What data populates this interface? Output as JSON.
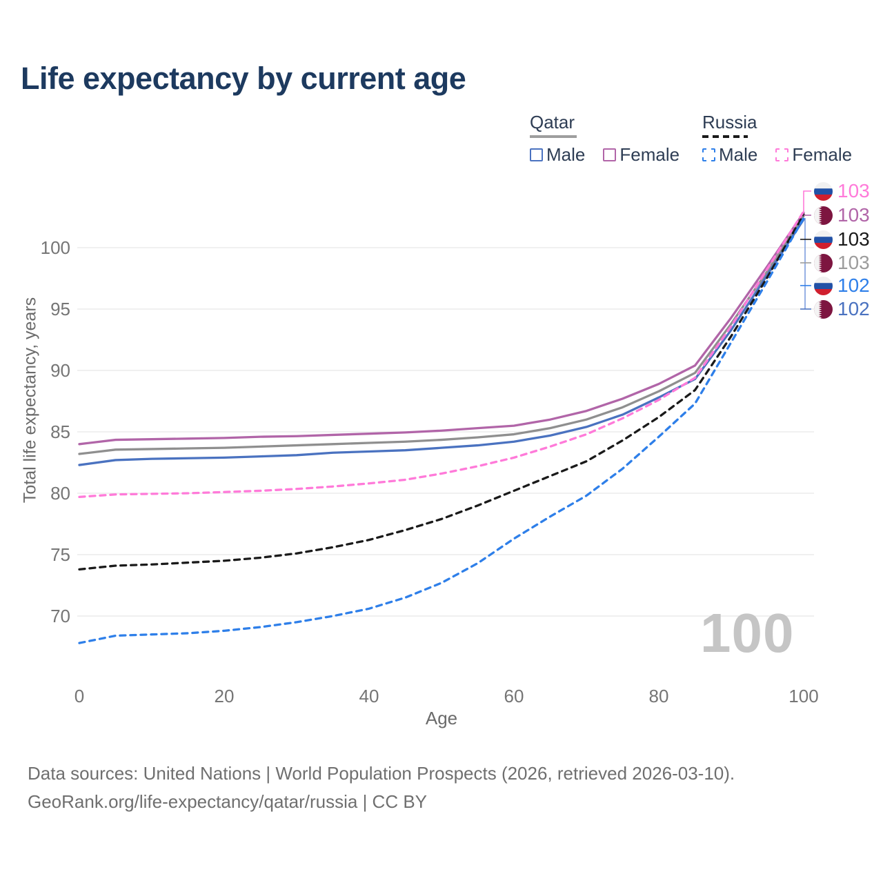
{
  "header": {
    "title": "Life expectancy by current age"
  },
  "legend": {
    "groups": [
      {
        "country": "Qatar",
        "line_style": "solid",
        "items": [
          {
            "label": "Male",
            "color": "#4a72c0"
          },
          {
            "label": "Female",
            "color": "#b165a8"
          }
        ]
      },
      {
        "country": "Russia",
        "line_style": "dashed",
        "items": [
          {
            "label": "Male",
            "color": "#2e7fe9"
          },
          {
            "label": "Female",
            "color": "#ff7ad9"
          }
        ]
      }
    ]
  },
  "chart_data": {
    "type": "line",
    "title": "Life expectancy by current age",
    "xlabel": "Age",
    "ylabel": "Total life expectancy, years",
    "xlim": [
      0,
      100
    ],
    "ylim": [
      66,
      104
    ],
    "xticks": [
      0,
      20,
      40,
      60,
      80,
      100
    ],
    "yticks": [
      70,
      75,
      80,
      85,
      90,
      95,
      100
    ],
    "grid": "horizontal-only",
    "legend_position": "top-right",
    "ages": [
      0,
      5,
      10,
      15,
      20,
      25,
      30,
      35,
      40,
      45,
      50,
      55,
      60,
      65,
      70,
      75,
      80,
      85,
      90,
      95,
      100
    ],
    "series": [
      {
        "name": "Qatar Both sexes",
        "country": "Qatar",
        "sex": "Both",
        "line": "solid",
        "color": "#8f8f8f",
        "values": [
          83.2,
          83.55,
          83.6,
          83.65,
          83.7,
          83.8,
          83.9,
          84.0,
          84.1,
          84.2,
          84.35,
          84.55,
          84.8,
          85.3,
          86.0,
          87.0,
          88.3,
          89.8,
          93.8,
          98.1,
          102.6
        ]
      },
      {
        "name": "Qatar Male",
        "country": "Qatar",
        "sex": "Male",
        "line": "solid",
        "color": "#4a72c0",
        "values": [
          82.3,
          82.7,
          82.8,
          82.85,
          82.9,
          83.0,
          83.1,
          83.3,
          83.4,
          83.5,
          83.7,
          83.9,
          84.2,
          84.7,
          85.4,
          86.4,
          87.8,
          89.3,
          93.3,
          97.8,
          102.3
        ]
      },
      {
        "name": "Qatar Female",
        "country": "Qatar",
        "sex": "Female",
        "line": "solid",
        "color": "#b165a8",
        "values": [
          84.0,
          84.35,
          84.4,
          84.45,
          84.5,
          84.6,
          84.65,
          84.75,
          84.85,
          84.95,
          85.1,
          85.3,
          85.5,
          86.0,
          86.7,
          87.7,
          88.9,
          90.4,
          94.3,
          98.5,
          102.85
        ]
      },
      {
        "name": "Russia Both sexes",
        "country": "Russia",
        "sex": "Both",
        "line": "dashed",
        "color": "#1a1a1a",
        "values": [
          73.8,
          74.1,
          74.2,
          74.35,
          74.5,
          74.75,
          75.1,
          75.6,
          76.2,
          77.0,
          77.9,
          79.0,
          80.2,
          81.4,
          82.6,
          84.3,
          86.2,
          88.4,
          92.8,
          97.6,
          102.7
        ]
      },
      {
        "name": "Russia Male",
        "country": "Russia",
        "sex": "Male",
        "line": "dashed",
        "color": "#2e7fe9",
        "values": [
          67.8,
          68.4,
          68.5,
          68.6,
          68.8,
          69.1,
          69.5,
          70.0,
          70.6,
          71.5,
          72.7,
          74.3,
          76.3,
          78.1,
          79.8,
          82.0,
          84.6,
          87.3,
          92.3,
          97.3,
          102.4
        ]
      },
      {
        "name": "Russia Female",
        "country": "Russia",
        "sex": "Female",
        "line": "dashed",
        "color": "#ff7ad9",
        "values": [
          79.7,
          79.9,
          79.95,
          80.0,
          80.1,
          80.2,
          80.35,
          80.55,
          80.8,
          81.1,
          81.6,
          82.2,
          82.9,
          83.8,
          84.8,
          86.1,
          87.6,
          89.4,
          93.6,
          98.3,
          102.95
        ]
      }
    ]
  },
  "end_labels": [
    {
      "value": "103",
      "flag": "russia",
      "series": "Russia Female",
      "color": "#ff7ad9"
    },
    {
      "value": "103",
      "flag": "qatar",
      "series": "Qatar Female",
      "color": "#b165a8"
    },
    {
      "value": "103",
      "flag": "russia",
      "series": "Russia Both sexes",
      "color": "#1a1a1a"
    },
    {
      "value": "103",
      "flag": "qatar",
      "series": "Qatar Both sexes",
      "color": "#9c9c9c"
    },
    {
      "value": "102",
      "flag": "russia",
      "series": "Russia Male",
      "color": "#2e7fe9"
    },
    {
      "value": "102",
      "flag": "qatar",
      "series": "Qatar Male",
      "color": "#4a72c0"
    }
  ],
  "watermark": "100",
  "footer": {
    "line1": "Data sources: United Nations | World Population Prospects (2026, retrieved 2026-03-10).",
    "line2": "GeoRank.org/life-expectancy/qatar/russia | CC BY"
  }
}
